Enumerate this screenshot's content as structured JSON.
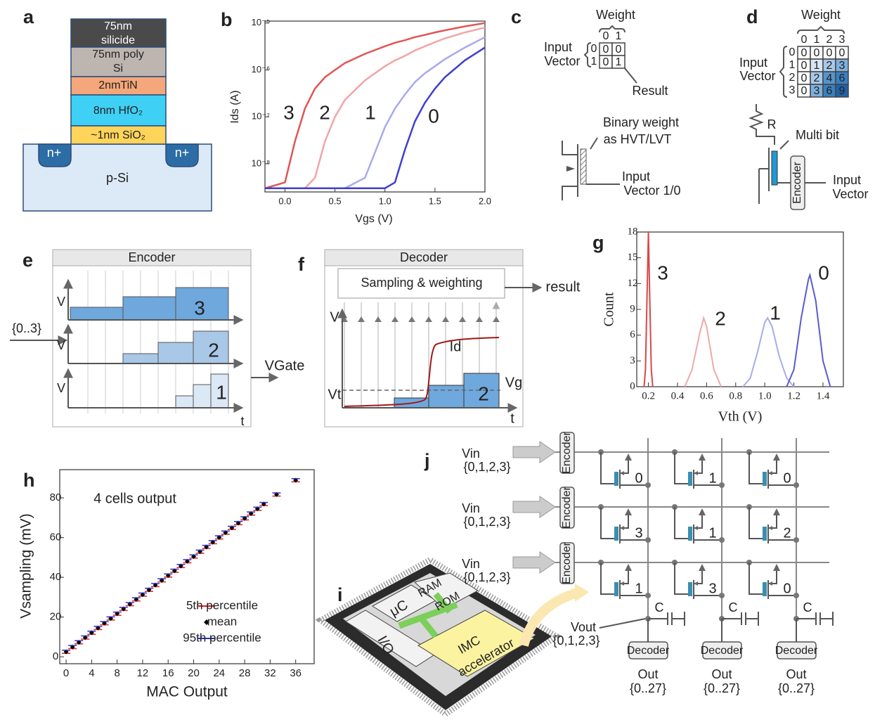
{
  "figure": {
    "letters": [
      "a",
      "b",
      "c",
      "d",
      "e",
      "f",
      "g",
      "h",
      "i",
      "j"
    ],
    "a": {
      "layers": [
        [
          "75nm",
          "silicide"
        ],
        [
          "75nm poly",
          "Si"
        ],
        [
          "2nmTiN"
        ],
        [
          "8nm HfO₂"
        ],
        [
          "~1nm SiO₂"
        ]
      ],
      "wells": [
        "n+",
        "n+"
      ],
      "substrate": "p-Si"
    },
    "c": {
      "weight": "Weight",
      "cols": [
        "0",
        "1"
      ],
      "input": [
        "Input",
        "Vector"
      ],
      "rows": [
        "0",
        "1"
      ],
      "cells": [
        [
          0,
          0
        ],
        [
          0,
          1
        ]
      ],
      "result": "Result",
      "binary": [
        "Binary weight",
        "as HVT/LVT"
      ],
      "input_vector": [
        "Input",
        "Vector 1/0"
      ]
    },
    "d": {
      "weight": "Weight",
      "cols": [
        "0",
        "1",
        "2",
        "3"
      ],
      "input": [
        "Input",
        "Vector"
      ],
      "rows": [
        "0",
        "1",
        "2",
        "3"
      ],
      "cells": [
        [
          0,
          0,
          0,
          0
        ],
        [
          0,
          1,
          2,
          3
        ],
        [
          0,
          2,
          4,
          6
        ],
        [
          0,
          3,
          6,
          9
        ]
      ],
      "r": "R",
      "multi": "Multi bit",
      "encoder": "Encoder",
      "input_vector": [
        "Input",
        "Vector"
      ]
    },
    "e": {
      "title": "Encoder",
      "v": [
        "V",
        "V",
        "V"
      ],
      "steps": [
        "3",
        "2",
        "1"
      ],
      "input": "{0..3}",
      "output": "VGate",
      "t": "t"
    },
    "f": {
      "title": "Decoder",
      "box": "Sampling & weighting",
      "result": "result",
      "v": "V",
      "id": "Id",
      "vt": "Vt",
      "vg": "Vg",
      "value": "2",
      "t": "t"
    },
    "i": {
      "uc": "μC",
      "ram": "RAM",
      "rom": "ROM",
      "io": "I/O",
      "imc": [
        "IMC",
        "accelerator"
      ]
    },
    "j": {
      "rows": [
        {
          "vin": "Vin",
          "set": "{0,1,2,3}",
          "encoder": "Encoder"
        },
        {
          "vin": "Vin",
          "set": "{0,1,2,3}",
          "encoder": "Encoder"
        },
        {
          "vin": "Vin",
          "set": "{0,1,2,3}",
          "encoder": "Encoder"
        }
      ],
      "weights": [
        [
          0,
          1,
          0
        ],
        [
          3,
          1,
          2
        ],
        [
          1,
          3,
          0
        ]
      ],
      "cols": [
        {
          "c": "C",
          "decoder": "Decoder",
          "out": "Out",
          "range": "{0..27}"
        },
        {
          "c": "C",
          "decoder": "Decoder",
          "out": "Out",
          "range": "{0..27}"
        },
        {
          "c": "C",
          "decoder": "Decoder",
          "out": "Out",
          "range": "{0..27}"
        }
      ],
      "vout": "Vout",
      "vout_set": "{0,1,2,3}"
    }
  },
  "chart_data": [
    {
      "type": "line",
      "x_label": "Vgs (V)",
      "y_label": "Ids (A)",
      "log_y": true,
      "x": [
        -0.2,
        0.0,
        0.1,
        0.2,
        0.3,
        0.4,
        0.5,
        0.6,
        0.8,
        1.0,
        1.1,
        1.2,
        1.3,
        1.4,
        1.5,
        1.6,
        1.8,
        2.0
      ],
      "xlim": [
        -0.2,
        2.0
      ],
      "xticks": [
        {
          "value": 0,
          "label": "0.0"
        },
        {
          "value": 0.5,
          "label": "0.5"
        },
        {
          "value": 1,
          "label": "1.0"
        },
        {
          "value": 1.5,
          "label": "1.5"
        },
        {
          "value": 2,
          "label": "2.0"
        }
      ],
      "ylim": [
        2.5e-09,
        1.1e-05
      ],
      "yticks": [
        {
          "value": 1e-08,
          "label": "10⁻⁸"
        },
        {
          "value": 1e-07,
          "label": "10⁻⁷"
        },
        {
          "value": 1e-06,
          "label": "10⁻⁶"
        },
        {
          "value": 1e-05,
          "label": "10⁻⁵"
        }
      ],
      "series": [
        {
          "name": "3",
          "color": "#e05555",
          "values": [
            3e-09,
            4e-09,
            3e-08,
            1.5e-07,
            4e-07,
            7e-07,
            1e-06,
            1.4e-06,
            2.2e-06,
            3.2e-06,
            3.8e-06,
            4.3e-06,
            5e-06,
            5.6e-06,
            6.3e-06,
            7e-06,
            8.5e-06,
            1e-05
          ]
        },
        {
          "name": "2",
          "color": "#f2a5a5",
          "values": [
            3e-09,
            3e-09,
            3e-09,
            3e-09,
            5e-09,
            3e-08,
            1e-07,
            2.3e-07,
            6e-07,
            1.2e-06,
            1.6e-06,
            2e-06,
            2.6e-06,
            3.2e-06,
            3.9e-06,
            4.7e-06,
            6.3e-06,
            8e-06
          ]
        },
        {
          "name": "1",
          "color": "#a9a9ec",
          "values": [
            3e-09,
            3e-09,
            3e-09,
            3e-09,
            3e-09,
            3e-09,
            3e-09,
            3e-09,
            5e-09,
            6e-08,
            1.5e-07,
            3e-07,
            5.5e-07,
            8.5e-07,
            1.2e-06,
            1.7e-06,
            3e-06,
            5e-06
          ]
        },
        {
          "name": "0",
          "color": "#3f3fd0",
          "values": [
            3e-09,
            3e-09,
            3e-09,
            3e-09,
            3e-09,
            3e-09,
            3e-09,
            3e-09,
            3e-09,
            3e-09,
            4e-09,
            2e-08,
            8e-08,
            2e-07,
            4e-07,
            7e-07,
            1.6e-06,
            3e-06
          ]
        }
      ]
    },
    {
      "type": "line",
      "x_label": "Vth (V)",
      "y_label": "Count",
      "xlim": [
        0.12,
        1.54
      ],
      "xticks": [
        0.2,
        0.4,
        0.6,
        0.8,
        {
          "value": 1,
          "label": "1.0"
        },
        1.2,
        1.4
      ],
      "ylim": [
        0,
        18
      ],
      "yticks": [
        0,
        3,
        6,
        9,
        12,
        15,
        18
      ],
      "series": [
        {
          "name": "3",
          "color": "#d84848",
          "x": [
            0.17,
            0.18,
            0.19,
            0.2,
            0.21,
            0.22,
            0.23
          ],
          "values": [
            0,
            2,
            10,
            18,
            10,
            2,
            0
          ]
        },
        {
          "name": "2",
          "color": "#f0a8a8",
          "x": [
            0.45,
            0.5,
            0.55,
            0.58,
            0.6,
            0.65,
            0.7
          ],
          "values": [
            0,
            2,
            6,
            8,
            7,
            2,
            0
          ]
        },
        {
          "name": "1",
          "color": "#aaaaee",
          "x": [
            0.85,
            0.9,
            0.95,
            1.0,
            1.02,
            1.05,
            1.1,
            1.15,
            1.2
          ],
          "values": [
            0,
            1,
            4,
            7.5,
            8,
            7,
            3.5,
            1,
            0
          ]
        },
        {
          "name": "0",
          "color": "#5a5ad0",
          "x": [
            1.15,
            1.2,
            1.25,
            1.3,
            1.31,
            1.35,
            1.4,
            1.45
          ],
          "values": [
            0,
            2,
            8,
            12.5,
            13,
            10,
            3,
            0
          ]
        }
      ]
    },
    {
      "type": "scatter",
      "title": "4 cells output",
      "x_label": "MAC Output",
      "y_label": "Vsampling (mV)",
      "legend": "lower right",
      "x": [
        0,
        1,
        2,
        3,
        4,
        5,
        6,
        7,
        8,
        9,
        10,
        11,
        12,
        13,
        14,
        15,
        16,
        17,
        18,
        19,
        20,
        21,
        22,
        23,
        24,
        25,
        26,
        27,
        28,
        29,
        30,
        31,
        33,
        36
      ],
      "xlim": [
        -1,
        38.9
      ],
      "xticks": [
        0,
        4,
        8,
        12,
        16,
        20,
        24,
        28,
        32,
        36
      ],
      "ylim": [
        -3.5,
        94.2
      ],
      "yticks": [
        0,
        20,
        40,
        60,
        80
      ],
      "series": [
        {
          "name": "5th percentile",
          "color": "#e02020",
          "marker": "dash",
          "values": [
            1.7,
            4.1,
            6.5,
            8.9,
            11.3,
            13.7,
            16.1,
            18.5,
            20.9,
            23.3,
            25.7,
            28.1,
            30.5,
            32.9,
            35.3,
            37.7,
            40.1,
            42.5,
            44.9,
            47.3,
            49.7,
            52.1,
            54.5,
            56.9,
            59.3,
            61.7,
            64.1,
            66.5,
            68.9,
            71.3,
            73.7,
            76.1,
            80.9,
            88.1
          ]
        },
        {
          "name": "mean",
          "color": "#000000",
          "marker": "diamond",
          "values": [
            2.5,
            4.9,
            7.3,
            9.7,
            12.1,
            14.5,
            16.9,
            19.3,
            21.7,
            24.1,
            26.5,
            28.9,
            31.3,
            33.7,
            36.1,
            38.5,
            40.9,
            43.3,
            45.7,
            48.1,
            50.5,
            52.9,
            55.3,
            57.7,
            60.1,
            62.5,
            64.9,
            67.3,
            69.7,
            72.1,
            74.5,
            76.9,
            81.7,
            88.9
          ]
        },
        {
          "name": "95th percentile",
          "color": "#3030c0",
          "marker": "dash",
          "values": [
            3.3,
            5.7,
            8.1,
            10.5,
            12.9,
            15.3,
            17.7,
            20.1,
            22.5,
            24.9,
            27.3,
            29.7,
            32.1,
            34.5,
            36.9,
            39.3,
            41.7,
            44.1,
            46.5,
            48.9,
            51.3,
            53.7,
            56.1,
            58.5,
            60.9,
            63.3,
            65.7,
            68.1,
            70.5,
            72.9,
            75.3,
            77.7,
            82.5,
            89.7
          ]
        }
      ]
    }
  ]
}
